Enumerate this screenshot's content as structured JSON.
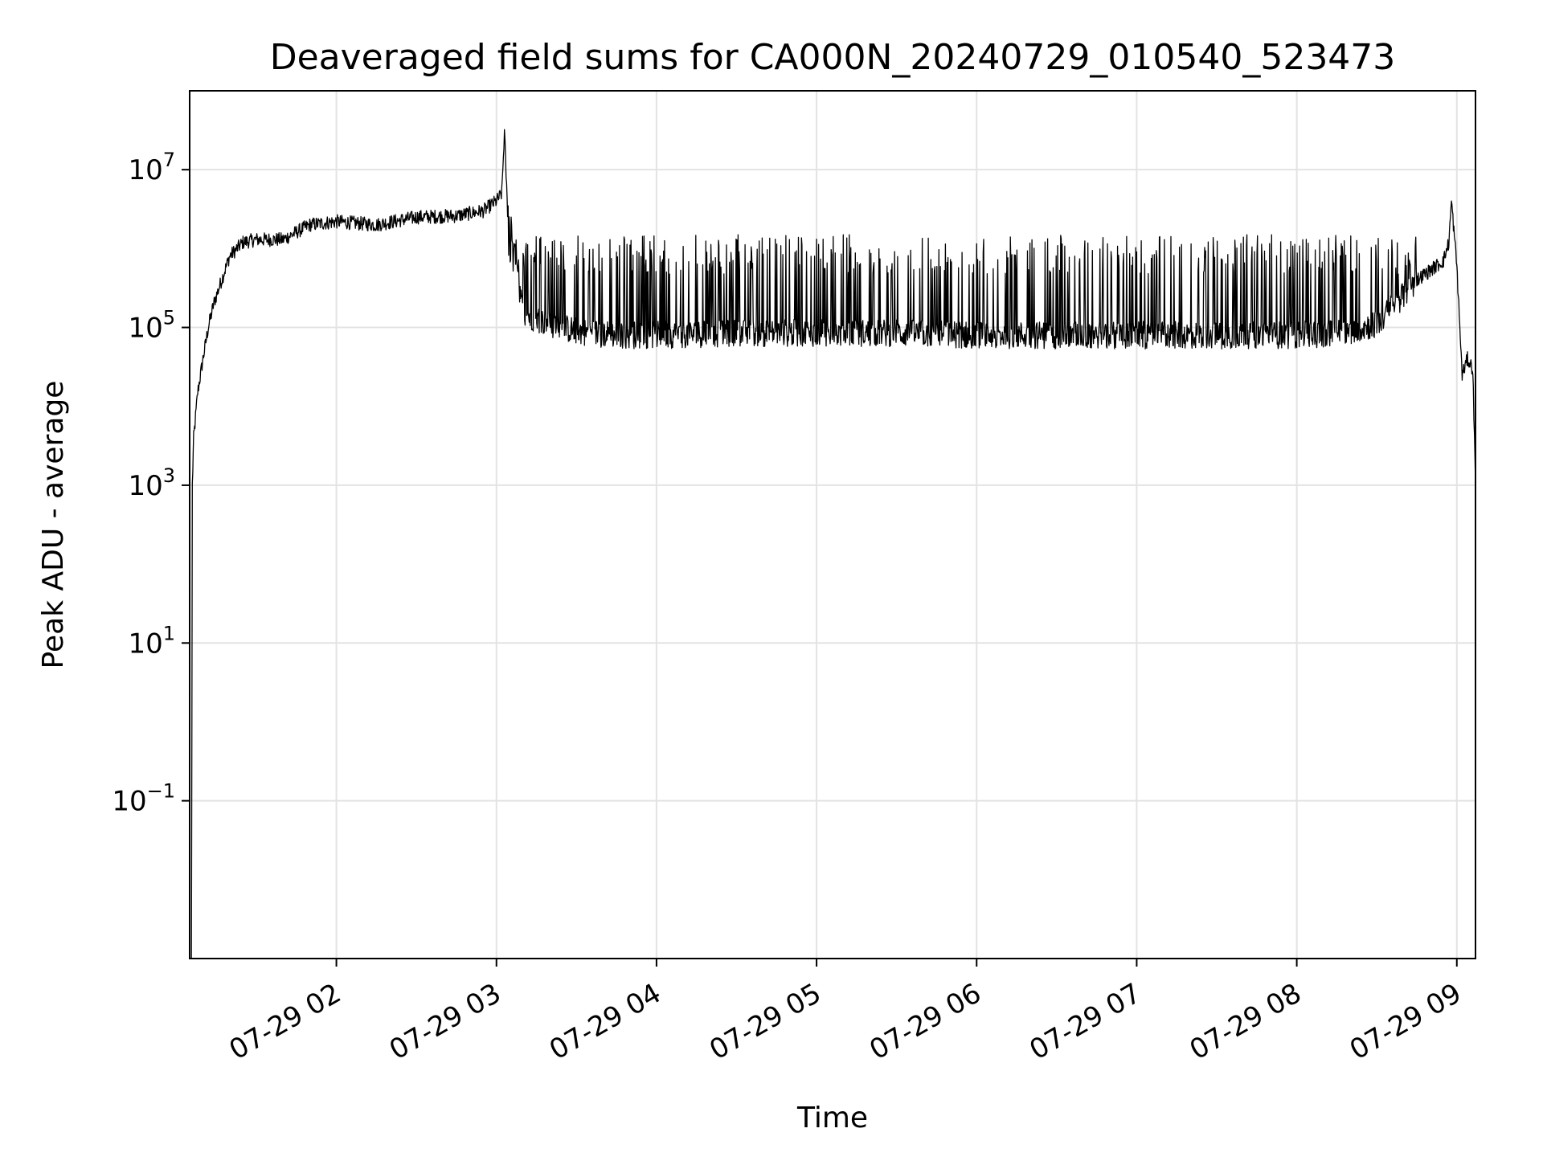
{
  "chart_data": {
    "type": "line",
    "title": "Deaveraged field sums for CA000N_20240729_010540_523473",
    "xlabel": "Time",
    "ylabel": "Peak ADU - average",
    "x_scale": "time",
    "y_scale": "log",
    "xlim": [
      "2024-07-29 01:05",
      "2024-07-29 09:07"
    ],
    "ylim": [
      0.001,
      100000000
    ],
    "grid": true,
    "legend": "none",
    "x_ticks": [
      "07-29 02",
      "07-29 03",
      "07-29 04",
      "07-29 05",
      "07-29 06",
      "07-29 07",
      "07-29 08",
      "07-29 09"
    ],
    "y_ticks": [
      {
        "value": 0.1,
        "base": "10",
        "exp": "−1"
      },
      {
        "value": 10,
        "base": "10",
        "exp": "1"
      },
      {
        "value": 1000,
        "base": "10",
        "exp": "3"
      },
      {
        "value": 100000,
        "base": "10",
        "exp": "5"
      },
      {
        "value": 10000000,
        "base": "10",
        "exp": "7"
      }
    ],
    "series": [
      {
        "color": "#000000",
        "x": [
          "2024-07-29 01:05:40",
          "2024-07-29 01:06:00",
          "2024-07-29 01:06:30",
          "2024-07-29 01:07:00",
          "2024-07-29 01:08:00",
          "2024-07-29 01:10:00",
          "2024-07-29 01:12:00",
          "2024-07-29 01:14:00",
          "2024-07-29 01:17:00",
          "2024-07-29 01:20:00",
          "2024-07-29 01:25:00",
          "2024-07-29 01:30:00",
          "2024-07-29 01:40:00",
          "2024-07-29 01:50:00",
          "2024-07-29 02:00:00",
          "2024-07-29 02:15:00",
          "2024-07-29 02:30:00",
          "2024-07-29 02:45:00",
          "2024-07-29 02:55:00",
          "2024-07-29 03:00:00",
          "2024-07-29 03:02:00",
          "2024-07-29 03:03:00",
          "2024-07-29 03:04:00",
          "2024-07-29 03:10:00",
          "2024-07-29 03:20:00",
          "2024-07-29 03:30:00",
          "2024-07-29 03:45:00",
          "2024-07-29 04:00:00",
          "2024-07-29 04:30:00",
          "2024-07-29 05:00:00",
          "2024-07-29 05:30:00",
          "2024-07-29 06:00:00",
          "2024-07-29 06:30:00",
          "2024-07-29 07:00:00",
          "2024-07-29 07:30:00",
          "2024-07-29 08:00:00",
          "2024-07-29 08:15:00",
          "2024-07-29 08:30:00",
          "2024-07-29 08:45:00",
          "2024-07-29 08:55:00",
          "2024-07-29 08:57:00",
          "2024-07-29 08:58:00",
          "2024-07-29 09:00:00",
          "2024-07-29 09:02:00",
          "2024-07-29 09:04:00",
          "2024-07-29 09:06:00",
          "2024-07-29 09:07:00"
        ],
        "y": [
          0.001,
          1000,
          4000,
          6000,
          15000,
          40000,
          100000,
          200000,
          400000,
          800000,
          1200000,
          1300000,
          1300000,
          2000000,
          2200000,
          2000000,
          2500000,
          2600000,
          3000000,
          4000000,
          5000000,
          30000000,
          4000000,
          150000,
          110000,
          90000,
          80000,
          80000,
          85000,
          85000,
          85000,
          80000,
          80000,
          80000,
          80000,
          80000,
          85000,
          110000,
          400000,
          700000,
          1200000,
          4000000,
          600000,
          25000,
          40000,
          30000,
          1000
        ]
      }
    ],
    "spike_band": {
      "start": "2024-07-29 03:04:00",
      "end": "2024-07-29 08:45:00",
      "upper": 1500000,
      "note_upper_values_reach": 1500000
    }
  }
}
